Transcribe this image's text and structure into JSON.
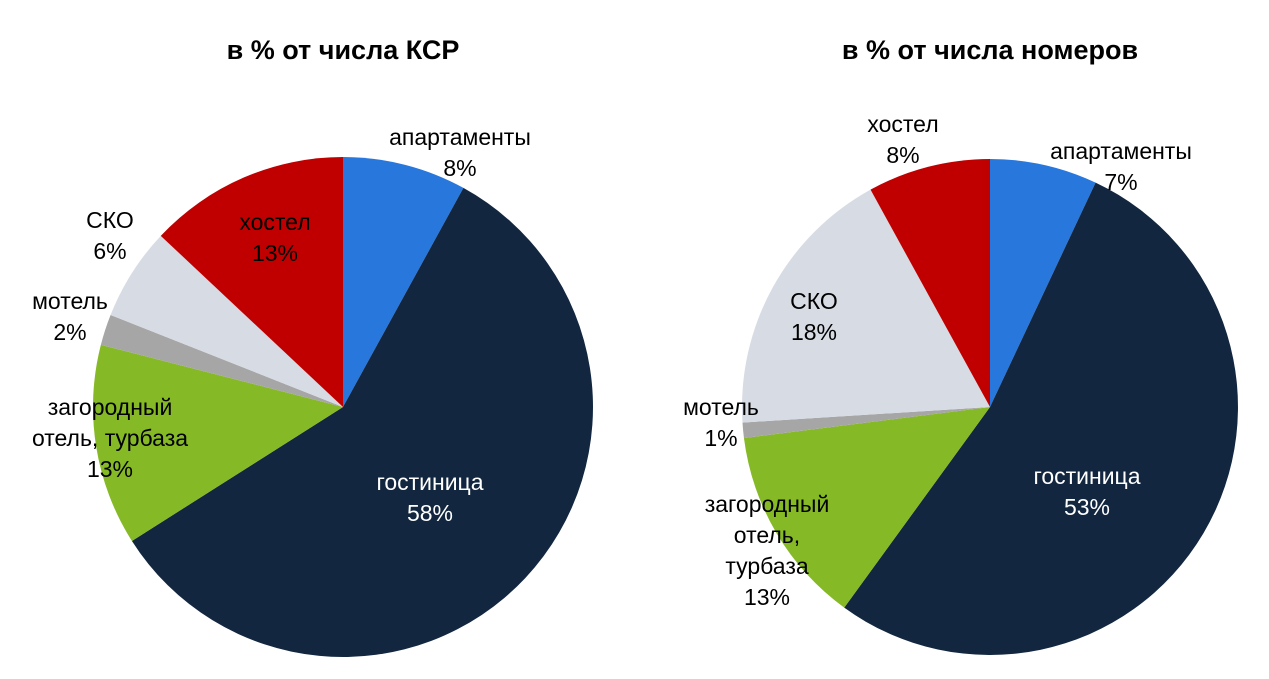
{
  "chart_data": [
    {
      "type": "pie",
      "title": "в % от числа КСР",
      "slices": [
        {
          "name": "апартаменты",
          "value": 8,
          "label": "8%",
          "color": "#2877dc"
        },
        {
          "name": "гостиница",
          "value": 58,
          "label": "58%",
          "color": "#12263f"
        },
        {
          "name": "загородный отель, турбаза",
          "value": 13,
          "label": "13%",
          "color": "#86b926"
        },
        {
          "name": "мотель",
          "value": 2,
          "label": "2%",
          "color": "#a6a6a6"
        },
        {
          "name": "СКО",
          "value": 6,
          "label": "6%",
          "color": "#d7dbe4"
        },
        {
          "name": "хостел",
          "value": 13,
          "label": "13%",
          "color": "#c00000"
        }
      ]
    },
    {
      "type": "pie",
      "title": "в % от числа номеров",
      "slices": [
        {
          "name": "апартаменты",
          "value": 7,
          "label": "7%",
          "color": "#2877dc"
        },
        {
          "name": "гостиница",
          "value": 53,
          "label": "53%",
          "color": "#12263f"
        },
        {
          "name": "загородный отель, турбаза",
          "value": 13,
          "label": "13%",
          "color": "#86b926"
        },
        {
          "name": "мотель",
          "value": 1,
          "label": "1%",
          "color": "#a6a6a6"
        },
        {
          "name": "СКО",
          "value": 18,
          "label": "18%",
          "color": "#d7dbe4"
        },
        {
          "name": "хостел",
          "value": 8,
          "label": "8%",
          "color": "#c00000"
        }
      ]
    }
  ]
}
